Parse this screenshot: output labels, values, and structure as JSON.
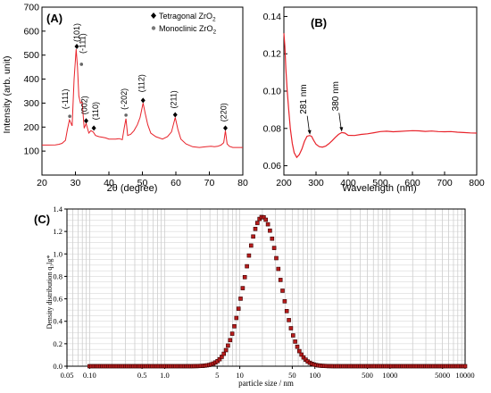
{
  "chart_data": [
    {
      "panel": "(A)",
      "type": "line",
      "xlabel": "2θ (degree)",
      "ylabel": "Intensity (arb. unit)",
      "xlim": [
        20,
        80
      ],
      "ylim": [
        0,
        700
      ],
      "xticks": [
        20,
        30,
        40,
        50,
        60,
        70,
        80
      ],
      "yticks": [
        100,
        200,
        300,
        400,
        500,
        600,
        700
      ],
      "color": "#e8222a",
      "legend": {
        "position": "top-right",
        "entries": [
          {
            "marker": "diamond",
            "text": "Tetragonal ZrO",
            "sub": "2"
          },
          {
            "marker": "circle",
            "text": "Monoclinic ZrO",
            "sub": "2"
          }
        ]
      },
      "series": [
        {
          "x": [
            20,
            22,
            24,
            25,
            26,
            27,
            27.6,
            28.2,
            29,
            29.6,
            30.2,
            30.6,
            31,
            31.5,
            32,
            32.6,
            33.2,
            34,
            34.6,
            35.3,
            36,
            37,
            38,
            39,
            40,
            41,
            42,
            43,
            44,
            44.6,
            45.1,
            45.6,
            46.5,
            47.5,
            48.5,
            49.3,
            50.2,
            50.8,
            51.6,
            52.5,
            54,
            56,
            57.5,
            58.7,
            59.8,
            60.6,
            61.5,
            63,
            65,
            67,
            69,
            70.5,
            71.5,
            72.5,
            73.5,
            74.3,
            74.8,
            75.3,
            76,
            77,
            78,
            80
          ],
          "y": [
            125,
            125,
            126,
            128,
            132,
            145,
            190,
            230,
            205,
            400,
            525,
            450,
            330,
            300,
            305,
            195,
            215,
            175,
            185,
            180,
            165,
            160,
            158,
            155,
            150,
            150,
            150,
            152,
            148,
            200,
            235,
            165,
            170,
            185,
            210,
            240,
            300,
            260,
            210,
            175,
            160,
            150,
            160,
            180,
            240,
            190,
            150,
            130,
            118,
            115,
            118,
            120,
            118,
            120,
            125,
            135,
            185,
            130,
            120,
            115,
            115,
            115
          ]
        }
      ],
      "annotations": [
        {
          "text": "(101)",
          "x": 30.4,
          "y": 525
        },
        {
          "text": "(-111)",
          "x": 31.8,
          "y": 447
        },
        {
          "text": "(-111)",
          "x": 28.3,
          "y": 230
        },
        {
          "text": "(002)",
          "x": 33.2,
          "y": 215
        },
        {
          "text": "(110)",
          "x": 35.5,
          "y": 185
        },
        {
          "text": "(-202)",
          "x": 45.1,
          "y": 235
        },
        {
          "text": "(112)",
          "x": 50.2,
          "y": 300
        },
        {
          "text": "(211)",
          "x": 59.8,
          "y": 240
        },
        {
          "text": "(220)",
          "x": 74.8,
          "y": 185
        }
      ]
    },
    {
      "panel": "(B)",
      "type": "line",
      "xlabel": "Wavelength (nm)",
      "ylabel": "",
      "xlim": [
        200,
        800
      ],
      "ylim": [
        0.055,
        0.145
      ],
      "xticks": [
        200,
        300,
        400,
        500,
        600,
        700,
        800
      ],
      "yticks": [
        0.06,
        0.08,
        0.1,
        0.12,
        0.14
      ],
      "color": "#e8222a",
      "series": [
        {
          "x": [
            200,
            203,
            206,
            210,
            215,
            220,
            226,
            232,
            240,
            248,
            256,
            264,
            272,
            280,
            286,
            292,
            300,
            310,
            320,
            330,
            340,
            350,
            360,
            370,
            380,
            390,
            400,
            420,
            440,
            460,
            480,
            500,
            520,
            540,
            560,
            580,
            600,
            620,
            640,
            660,
            680,
            700,
            720,
            740,
            760,
            780,
            800
          ],
          "y": [
            0.131,
            0.124,
            0.112,
            0.101,
            0.09,
            0.08,
            0.072,
            0.067,
            0.0645,
            0.066,
            0.069,
            0.073,
            0.0758,
            0.0762,
            0.0758,
            0.0738,
            0.0715,
            0.0702,
            0.07,
            0.0705,
            0.0718,
            0.0734,
            0.0752,
            0.0768,
            0.0778,
            0.0775,
            0.0763,
            0.0762,
            0.0768,
            0.0771,
            0.0777,
            0.0783,
            0.0785,
            0.0782,
            0.0784,
            0.0786,
            0.0788,
            0.0787,
            0.0784,
            0.0786,
            0.0783,
            0.0782,
            0.0783,
            0.078,
            0.0778,
            0.0776,
            0.0775
          ]
        }
      ],
      "annotations": [
        {
          "text": "281 nm",
          "x": 281,
          "y": 0.0762
        },
        {
          "text": "380 nm",
          "x": 380,
          "y": 0.0778
        }
      ]
    },
    {
      "panel": "(C)",
      "type": "scatter",
      "xscale": "log",
      "xlabel": "particle size / nm",
      "ylabel": "Density distribution q₃lg*",
      "xlim": [
        0.05,
        10000
      ],
      "ylim": [
        0,
        1.4
      ],
      "xticks": [
        0.05,
        0.1,
        0.5,
        1.0,
        5,
        10,
        50,
        100,
        500,
        1000,
        5000,
        10000
      ],
      "xticklabels": [
        "0.05",
        "0.10",
        "0.5",
        "1.0",
        "5",
        "10",
        "50",
        "100",
        "500",
        "1000",
        "5000",
        "10000"
      ],
      "yticks": [
        0.0,
        0.2,
        0.4,
        0.6,
        0.8,
        1.0,
        1.2,
        1.4
      ],
      "yticklabels": [
        "0.0",
        "0.2",
        "0.4",
        "0.6",
        "0.8",
        "1.0",
        "1.2",
        "1.4"
      ],
      "grid": true,
      "marker_color": "#b71c1c",
      "distribution": {
        "peak_x": 20,
        "peak_y": 1.33,
        "sigma_log10": 0.23,
        "x_min": 0.1,
        "x_max": 10000,
        "points": 180
      }
    }
  ]
}
